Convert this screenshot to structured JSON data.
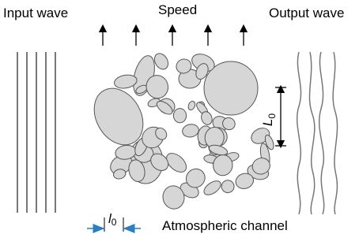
{
  "input_label": "Input wave",
  "speed_label": "Speed",
  "output_label": "Output wave",
  "outer_scale": {
    "symbol": "L",
    "subscript": "0"
  },
  "inner_scale": {
    "symbol": "l",
    "subscript": "0"
  },
  "channel_label": "Atmospheric channel"
}
